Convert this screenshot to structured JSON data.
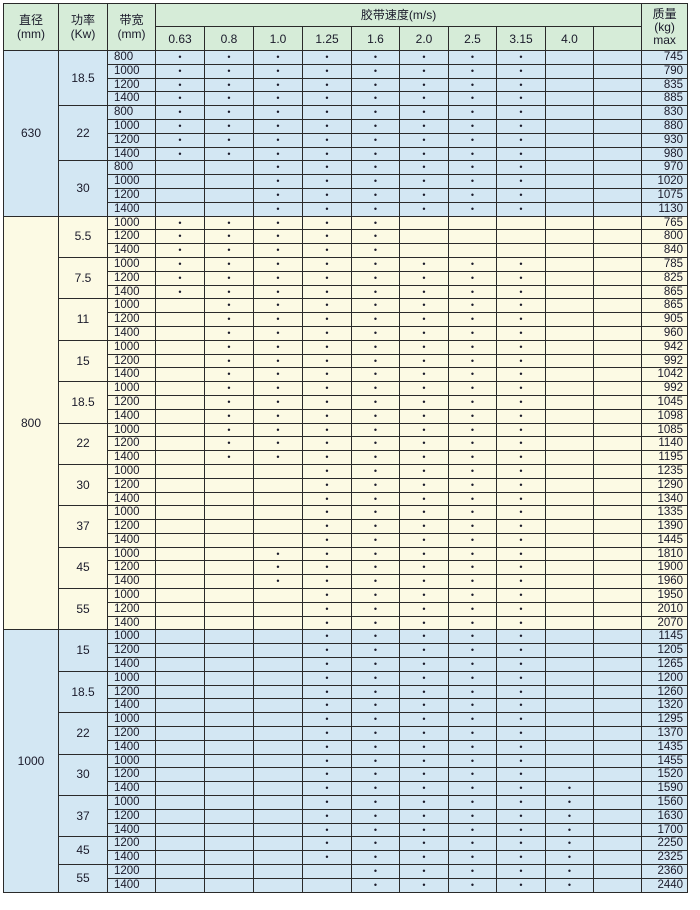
{
  "header": {
    "diameter": "直径",
    "diameter_unit": "(mm)",
    "power": "功率",
    "power_unit": "(Kw)",
    "width": "带宽",
    "width_unit": "(mm)",
    "speed": "胶带速度(m/s)",
    "mass": "质量",
    "mass_unit": "(kg)",
    "mass_note": "max",
    "speeds": [
      "0.63",
      "0.8",
      "1.0",
      "1.25",
      "1.6",
      "2.0",
      "2.5",
      "3.15",
      "4.0",
      ""
    ]
  },
  "mark": "•",
  "colors": {
    "header": "#d6ecd8",
    "blue_section": "#d3e7f3",
    "cream_section": "#fcfae4"
  },
  "groups": [
    {
      "diameter": "630",
      "powers": [
        {
          "power": "18.5",
          "rows": [
            {
              "width": "800",
              "mass": "745",
              "speeds": [
                "0.63",
                "0.8",
                "1.0",
                "1.25",
                "1.6",
                "2.0",
                "2.5",
                "3.15"
              ]
            },
            {
              "width": "1000",
              "mass": "790",
              "speeds": [
                "0.63",
                "0.8",
                "1.0",
                "1.25",
                "1.6",
                "2.0",
                "2.5",
                "3.15"
              ]
            },
            {
              "width": "1200",
              "mass": "835",
              "speeds": [
                "0.63",
                "0.8",
                "1.0",
                "1.25",
                "1.6",
                "2.0",
                "2.5",
                "3.15"
              ]
            },
            {
              "width": "1400",
              "mass": "885",
              "speeds": [
                "0.63",
                "0.8",
                "1.0",
                "1.25",
                "1.6",
                "2.0",
                "2.5",
                "3.15"
              ]
            }
          ]
        },
        {
          "power": "22",
          "rows": [
            {
              "width": "800",
              "mass": "830",
              "speeds": [
                "0.63",
                "0.8",
                "1.0",
                "1.25",
                "1.6",
                "2.0",
                "2.5",
                "3.15"
              ]
            },
            {
              "width": "1000",
              "mass": "880",
              "speeds": [
                "0.63",
                "0.8",
                "1.0",
                "1.25",
                "1.6",
                "2.0",
                "2.5",
                "3.15"
              ]
            },
            {
              "width": "1200",
              "mass": "930",
              "speeds": [
                "0.63",
                "0.8",
                "1.0",
                "1.25",
                "1.6",
                "2.0",
                "2.5",
                "3.15"
              ]
            },
            {
              "width": "1400",
              "mass": "980",
              "speeds": [
                "0.63",
                "0.8",
                "1.0",
                "1.25",
                "1.6",
                "2.0",
                "2.5",
                "3.15"
              ]
            }
          ]
        },
        {
          "power": "30",
          "rows": [
            {
              "width": "800",
              "mass": "970",
              "speeds": [
                "1.0",
                "1.25",
                "1.6",
                "2.0",
                "2.5",
                "3.15"
              ]
            },
            {
              "width": "1000",
              "mass": "1020",
              "speeds": [
                "1.0",
                "1.25",
                "1.6",
                "2.0",
                "2.5",
                "3.15"
              ]
            },
            {
              "width": "1200",
              "mass": "1075",
              "speeds": [
                "1.0",
                "1.25",
                "1.6",
                "2.0",
                "2.5",
                "3.15"
              ]
            },
            {
              "width": "1400",
              "mass": "1130",
              "speeds": [
                "1.0",
                "1.25",
                "1.6",
                "2.0",
                "2.5",
                "3.15"
              ]
            }
          ]
        }
      ]
    },
    {
      "diameter": "800",
      "powers": [
        {
          "power": "5.5",
          "rows": [
            {
              "width": "1000",
              "mass": "765",
              "speeds": [
                "0.63",
                "0.8",
                "1.0",
                "1.25",
                "1.6"
              ]
            },
            {
              "width": "1200",
              "mass": "800",
              "speeds": [
                "0.63",
                "0.8",
                "1.0",
                "1.25",
                "1.6"
              ]
            },
            {
              "width": "1400",
              "mass": "840",
              "speeds": [
                "0.63",
                "0.8",
                "1.0",
                "1.25",
                "1.6"
              ]
            }
          ]
        },
        {
          "power": "7.5",
          "rows": [
            {
              "width": "1000",
              "mass": "785",
              "speeds": [
                "0.63",
                "0.8",
                "1.0",
                "1.25",
                "1.6",
                "2.0",
                "2.5",
                "3.15"
              ]
            },
            {
              "width": "1200",
              "mass": "825",
              "speeds": [
                "0.63",
                "0.8",
                "1.0",
                "1.25",
                "1.6",
                "2.0",
                "2.5",
                "3.15"
              ]
            },
            {
              "width": "1400",
              "mass": "865",
              "speeds": [
                "0.63",
                "0.8",
                "1.0",
                "1.25",
                "1.6",
                "2.0",
                "2.5",
                "3.15"
              ]
            }
          ]
        },
        {
          "power": "11",
          "rows": [
            {
              "width": "1000",
              "mass": "865",
              "speeds": [
                "0.8",
                "1.0",
                "1.25",
                "1.6",
                "2.0",
                "2.5",
                "3.15"
              ]
            },
            {
              "width": "1200",
              "mass": "905",
              "speeds": [
                "0.8",
                "1.0",
                "1.25",
                "1.6",
                "2.0",
                "2.5",
                "3.15"
              ]
            },
            {
              "width": "1400",
              "mass": "960",
              "speeds": [
                "0.8",
                "1.0",
                "1.25",
                "1.6",
                "2.0",
                "2.5",
                "3.15"
              ]
            }
          ]
        },
        {
          "power": "15",
          "rows": [
            {
              "width": "1000",
              "mass": "942",
              "speeds": [
                "0.8",
                "1.0",
                "1.25",
                "1.6",
                "2.0",
                "2.5",
                "3.15"
              ]
            },
            {
              "width": "1200",
              "mass": "992",
              "speeds": [
                "0.8",
                "1.0",
                "1.25",
                "1.6",
                "2.0",
                "2.5",
                "3.15"
              ]
            },
            {
              "width": "1400",
              "mass": "1042",
              "speeds": [
                "0.8",
                "1.0",
                "1.25",
                "1.6",
                "2.0",
                "2.5",
                "3.15"
              ]
            }
          ]
        },
        {
          "power": "18.5",
          "rows": [
            {
              "width": "1000",
              "mass": "992",
              "speeds": [
                "0.8",
                "1.0",
                "1.25",
                "1.6",
                "2.0",
                "2.5",
                "3.15"
              ]
            },
            {
              "width": "1200",
              "mass": "1045",
              "speeds": [
                "0.8",
                "1.0",
                "1.25",
                "1.6",
                "2.0",
                "2.5",
                "3.15"
              ]
            },
            {
              "width": "1400",
              "mass": "1098",
              "speeds": [
                "0.8",
                "1.0",
                "1.25",
                "1.6",
                "2.0",
                "2.5",
                "3.15"
              ]
            }
          ]
        },
        {
          "power": "22",
          "rows": [
            {
              "width": "1000",
              "mass": "1085",
              "speeds": [
                "0.8",
                "1.0",
                "1.25",
                "1.6",
                "2.0",
                "2.5",
                "3.15"
              ]
            },
            {
              "width": "1200",
              "mass": "1140",
              "speeds": [
                "0.8",
                "1.0",
                "1.25",
                "1.6",
                "2.0",
                "2.5",
                "3.15"
              ]
            },
            {
              "width": "1400",
              "mass": "1195",
              "speeds": [
                "0.8",
                "1.0",
                "1.25",
                "1.6",
                "2.0",
                "2.5",
                "3.15"
              ]
            }
          ]
        },
        {
          "power": "30",
          "rows": [
            {
              "width": "1000",
              "mass": "1235",
              "speeds": [
                "1.25",
                "1.6",
                "2.0",
                "2.5",
                "3.15"
              ]
            },
            {
              "width": "1200",
              "mass": "1290",
              "speeds": [
                "1.25",
                "1.6",
                "2.0",
                "2.5",
                "3.15"
              ]
            },
            {
              "width": "1400",
              "mass": "1340",
              "speeds": [
                "1.25",
                "1.6",
                "2.0",
                "2.5",
                "3.15"
              ]
            }
          ]
        },
        {
          "power": "37",
          "rows": [
            {
              "width": "1000",
              "mass": "1335",
              "speeds": [
                "1.25",
                "1.6",
                "2.0",
                "2.5",
                "3.15"
              ]
            },
            {
              "width": "1200",
              "mass": "1390",
              "speeds": [
                "1.25",
                "1.6",
                "2.0",
                "2.5",
                "3.15"
              ]
            },
            {
              "width": "1400",
              "mass": "1445",
              "speeds": [
                "1.25",
                "1.6",
                "2.0",
                "2.5",
                "3.15"
              ]
            }
          ]
        },
        {
          "power": "45",
          "rows": [
            {
              "width": "1000",
              "mass": "1810",
              "speeds": [
                "1.0",
                "1.25",
                "1.6",
                "2.0",
                "2.5",
                "3.15"
              ]
            },
            {
              "width": "1200",
              "mass": "1900",
              "speeds": [
                "1.0",
                "1.25",
                "1.6",
                "2.0",
                "2.5",
                "3.15"
              ]
            },
            {
              "width": "1400",
              "mass": "1960",
              "speeds": [
                "1.0",
                "1.25",
                "1.6",
                "2.0",
                "2.5",
                "3.15"
              ]
            }
          ]
        },
        {
          "power": "55",
          "rows": [
            {
              "width": "1000",
              "mass": "1950",
              "speeds": [
                "1.25",
                "1.6",
                "2.0",
                "2.5",
                "3.15"
              ]
            },
            {
              "width": "1200",
              "mass": "2010",
              "speeds": [
                "1.25",
                "1.6",
                "2.0",
                "2.5",
                "3.15"
              ]
            },
            {
              "width": "1400",
              "mass": "2070",
              "speeds": [
                "1.25",
                "1.6",
                "2.0",
                "2.5",
                "3.15"
              ]
            }
          ]
        }
      ]
    },
    {
      "diameter": "1000",
      "powers": [
        {
          "power": "15",
          "rows": [
            {
              "width": "1000",
              "mass": "1145",
              "speeds": [
                "1.25",
                "1.6",
                "2.0",
                "2.5",
                "3.15"
              ]
            },
            {
              "width": "1200",
              "mass": "1205",
              "speeds": [
                "1.25",
                "1.6",
                "2.0",
                "2.5",
                "3.15"
              ]
            },
            {
              "width": "1400",
              "mass": "1265",
              "speeds": [
                "1.25",
                "1.6",
                "2.0",
                "2.5",
                "3.15"
              ]
            }
          ]
        },
        {
          "power": "18.5",
          "rows": [
            {
              "width": "1000",
              "mass": "1200",
              "speeds": [
                "1.25",
                "1.6",
                "2.0",
                "2.5",
                "3.15"
              ]
            },
            {
              "width": "1200",
              "mass": "1260",
              "speeds": [
                "1.25",
                "1.6",
                "2.0",
                "2.5",
                "3.15"
              ]
            },
            {
              "width": "1400",
              "mass": "1320",
              "speeds": [
                "1.25",
                "1.6",
                "2.0",
                "2.5",
                "3.15"
              ]
            }
          ]
        },
        {
          "power": "22",
          "rows": [
            {
              "width": "1000",
              "mass": "1295",
              "speeds": [
                "1.25",
                "1.6",
                "2.0",
                "2.5",
                "3.15"
              ]
            },
            {
              "width": "1200",
              "mass": "1370",
              "speeds": [
                "1.25",
                "1.6",
                "2.0",
                "2.5",
                "3.15"
              ]
            },
            {
              "width": "1400",
              "mass": "1435",
              "speeds": [
                "1.25",
                "1.6",
                "2.0",
                "2.5",
                "3.15"
              ]
            }
          ]
        },
        {
          "power": "30",
          "rows": [
            {
              "width": "1000",
              "mass": "1455",
              "speeds": [
                "1.25",
                "1.6",
                "2.0",
                "2.5",
                "3.15"
              ]
            },
            {
              "width": "1200",
              "mass": "1520",
              "speeds": [
                "1.25",
                "1.6",
                "2.0",
                "2.5",
                "3.15"
              ]
            },
            {
              "width": "1400",
              "mass": "1590",
              "speeds": [
                "1.25",
                "1.6",
                "2.0",
                "2.5",
                "3.15",
                "4.0"
              ]
            }
          ]
        },
        {
          "power": "37",
          "rows": [
            {
              "width": "1000",
              "mass": "1560",
              "speeds": [
                "1.25",
                "1.6",
                "2.0",
                "2.5",
                "3.15",
                "4.0"
              ]
            },
            {
              "width": "1200",
              "mass": "1630",
              "speeds": [
                "1.25",
                "1.6",
                "2.0",
                "2.5",
                "3.15",
                "4.0"
              ]
            },
            {
              "width": "1400",
              "mass": "1700",
              "speeds": [
                "1.25",
                "1.6",
                "2.0",
                "2.5",
                "3.15",
                "4.0"
              ]
            }
          ]
        },
        {
          "power": "45",
          "rows": [
            {
              "width": "1200",
              "mass": "2250",
              "speeds": [
                "1.25",
                "1.6",
                "2.0",
                "2.5",
                "3.15",
                "4.0"
              ]
            },
            {
              "width": "1400",
              "mass": "2325",
              "speeds": [
                "1.25",
                "1.6",
                "2.0",
                "2.5",
                "3.15",
                "4.0"
              ]
            }
          ]
        },
        {
          "power": "55",
          "rows": [
            {
              "width": "1200",
              "mass": "2360",
              "speeds": [
                "1.6",
                "2.0",
                "2.5",
                "3.15",
                "4.0"
              ]
            },
            {
              "width": "1400",
              "mass": "2440",
              "speeds": [
                "1.6",
                "2.0",
                "2.5",
                "3.15",
                "4.0"
              ]
            }
          ]
        }
      ]
    }
  ]
}
